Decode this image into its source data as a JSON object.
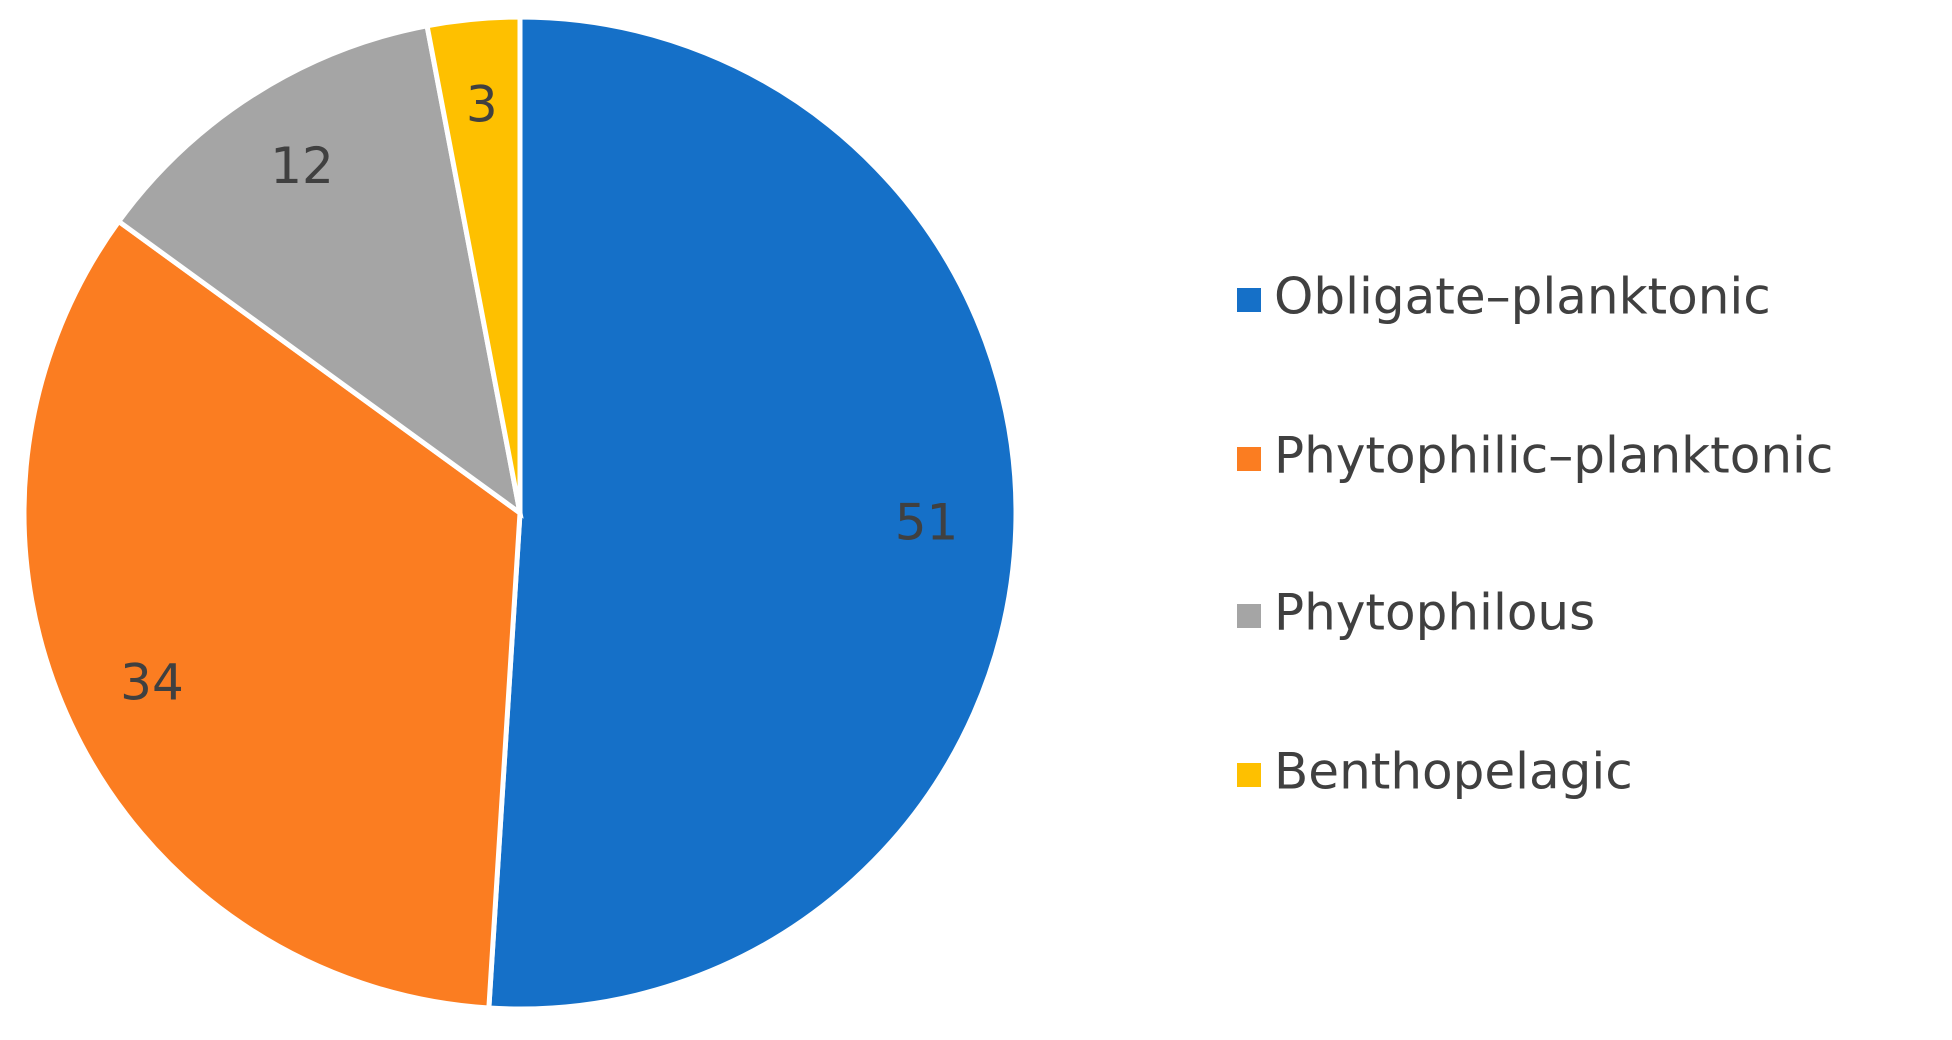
{
  "chart_data": {
    "type": "pie",
    "categories": [
      "Obligate–planktonic",
      "Phytophilic–planktonic",
      "Phytophilous",
      "Benthopelagic"
    ],
    "values": [
      51,
      34,
      12,
      3
    ],
    "colors": [
      "#1570c8",
      "#fb7d21",
      "#a5a5a5",
      "#fec000"
    ],
    "legend": "right"
  }
}
